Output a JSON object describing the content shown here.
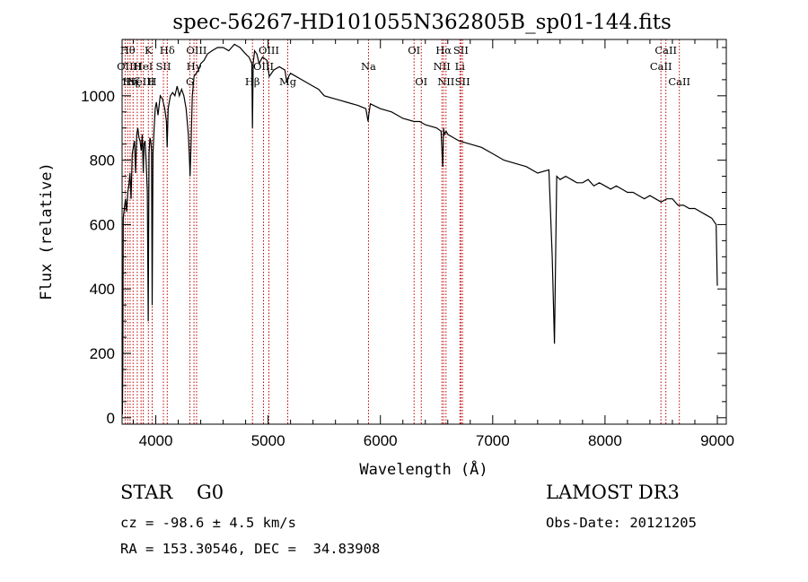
{
  "chart_data": {
    "type": "line",
    "title": "spec-56267-HD101055N362805B_sp01-144.fits",
    "xlabel": "Wavelength (Å)",
    "ylabel": "Flux (relative)",
    "xlim": [
      3700,
      9080
    ],
    "ylim": [
      -20,
      1175
    ],
    "x_ticks": [
      4000,
      5000,
      6000,
      7000,
      8000,
      9000
    ],
    "y_ticks": [
      0,
      200,
      400,
      600,
      800,
      1000
    ],
    "grid": false,
    "series": [
      {
        "name": "flux",
        "x": [
          3700,
          3703,
          3706,
          3710,
          3720,
          3730,
          3740,
          3750,
          3760,
          3770,
          3780,
          3790,
          3800,
          3810,
          3820,
          3830,
          3840,
          3850,
          3860,
          3870,
          3880,
          3889,
          3895,
          3905,
          3915,
          3925,
          3933,
          3940,
          3948,
          3955,
          3962,
          3968,
          3975,
          3985,
          3995,
          4005,
          4020,
          4040,
          4060,
          4080,
          4095,
          4101,
          4110,
          4130,
          4150,
          4170,
          4190,
          4210,
          4230,
          4250,
          4270,
          4290,
          4300,
          4305,
          4315,
          4325,
          4340,
          4360,
          4380,
          4400,
          4430,
          4460,
          4500,
          4550,
          4600,
          4650,
          4700,
          4750,
          4800,
          4830,
          4855,
          4861,
          4867,
          4880,
          4900,
          4920,
          4950,
          4990,
          5010,
          5050,
          5100,
          5150,
          5167,
          5183,
          5200,
          5250,
          5300,
          5350,
          5400,
          5450,
          5500,
          5600,
          5700,
          5800,
          5870,
          5890,
          5896,
          5910,
          6000,
          6100,
          6200,
          6300,
          6350,
          6400,
          6500,
          6540,
          6555,
          6563,
          6570,
          6585,
          6600,
          6650,
          6700,
          6800,
          6900,
          7000,
          7100,
          7200,
          7300,
          7400,
          7500,
          7530,
          7550,
          7570,
          7600,
          7650,
          7700,
          7750,
          7800,
          7850,
          7900,
          7950,
          8000,
          8050,
          8100,
          8150,
          8200,
          8250,
          8300,
          8350,
          8400,
          8450,
          8500,
          8550,
          8600,
          8650,
          8700,
          8750,
          8800,
          8850,
          8900,
          8950,
          8990,
          9000
        ],
        "y": [
          265,
          10,
          160,
          620,
          650,
          680,
          640,
          700,
          720,
          760,
          680,
          820,
          840,
          860,
          760,
          880,
          900,
          870,
          860,
          830,
          880,
          760,
          850,
          860,
          790,
          700,
          300,
          820,
          870,
          860,
          830,
          350,
          820,
          900,
          960,
          980,
          940,
          1000,
          990,
          960,
          920,
          840,
          960,
          1000,
          1010,
          1000,
          1030,
          1000,
          1020,
          1000,
          960,
          880,
          800,
          750,
          860,
          1000,
          1060,
          1070,
          1080,
          1100,
          1110,
          1130,
          1140,
          1150,
          1150,
          1140,
          1160,
          1150,
          1130,
          1120,
          1100,
          900,
          1100,
          1140,
          1130,
          1100,
          1120,
          1110,
          1060,
          1080,
          1090,
          1080,
          1040,
          1060,
          1070,
          1060,
          1050,
          1040,
          1030,
          1020,
          1000,
          990,
          980,
          970,
          960,
          920,
          940,
          975,
          960,
          950,
          930,
          920,
          920,
          910,
          900,
          890,
          780,
          900,
          880,
          890,
          880,
          870,
          860,
          850,
          840,
          820,
          800,
          790,
          780,
          760,
          770,
          500,
          230,
          750,
          740,
          750,
          740,
          730,
          730,
          740,
          720,
          730,
          720,
          710,
          720,
          710,
          700,
          700,
          690,
          680,
          690,
          680,
          670,
          680,
          680,
          660,
          660,
          650,
          650,
          640,
          630,
          620,
          600,
          410
        ]
      }
    ],
    "lines": [
      {
        "x": 3727,
        "label": "OII",
        "row": 1
      },
      {
        "x": 3750,
        "label": "Hθ",
        "row": 0
      },
      {
        "x": 3771,
        "label": "Hη",
        "row": 2
      },
      {
        "x": 3798,
        "label": "Hζ",
        "row": 2
      },
      {
        "x": 3835,
        "label": "H",
        "row": 1
      },
      {
        "x": 3869,
        "label": "NeIII",
        "row": 2
      },
      {
        "x": 3889,
        "label": "HeI",
        "row": 1
      },
      {
        "x": 3934,
        "label": "K",
        "row": 0
      },
      {
        "x": 3968,
        "label": "H",
        "row": 2
      },
      {
        "x": 4068,
        "label": "SII",
        "row": 1
      },
      {
        "x": 4102,
        "label": "Hδ",
        "row": 0
      },
      {
        "x": 4304,
        "label": "G",
        "row": 2
      },
      {
        "x": 4340,
        "label": "Hγ",
        "row": 1
      },
      {
        "x": 4363,
        "label": "OIII",
        "row": 0
      },
      {
        "x": 4861,
        "label": "Hβ",
        "row": 2
      },
      {
        "x": 4959,
        "label": "OIII",
        "row": 1
      },
      {
        "x": 5007,
        "label": "OIII",
        "row": 0
      },
      {
        "x": 5175,
        "label": "Mg",
        "row": 2
      },
      {
        "x": 5894,
        "label": "Na",
        "row": 1
      },
      {
        "x": 6300,
        "label": "OI",
        "row": 0
      },
      {
        "x": 6364,
        "label": "OI",
        "row": 2
      },
      {
        "x": 6548,
        "label": "NII",
        "row": 1
      },
      {
        "x": 6563,
        "label": "Hα",
        "row": 0
      },
      {
        "x": 6584,
        "label": "NII",
        "row": 2
      },
      {
        "x": 6708,
        "label": "Li",
        "row": 1
      },
      {
        "x": 6717,
        "label": "SII",
        "row": 0
      },
      {
        "x": 6731,
        "label": "SII",
        "row": 2
      },
      {
        "x": 8498,
        "label": "CaII",
        "row": 1
      },
      {
        "x": 8542,
        "label": "CaII",
        "row": 0
      },
      {
        "x": 8662,
        "label": "CaII",
        "row": 2
      }
    ]
  },
  "info": {
    "object_class": "STAR",
    "subclass": "G0",
    "redshift_text": "cz = -98.6 ± 4.5 km/s",
    "coords_text": "RA = 153.30546, DEC =  34.83908",
    "survey": "LAMOST DR3",
    "obs_date": "Obs-Date: 20121205"
  },
  "colors": {
    "line_marker": "#c00000",
    "spectrum": "#000000"
  }
}
